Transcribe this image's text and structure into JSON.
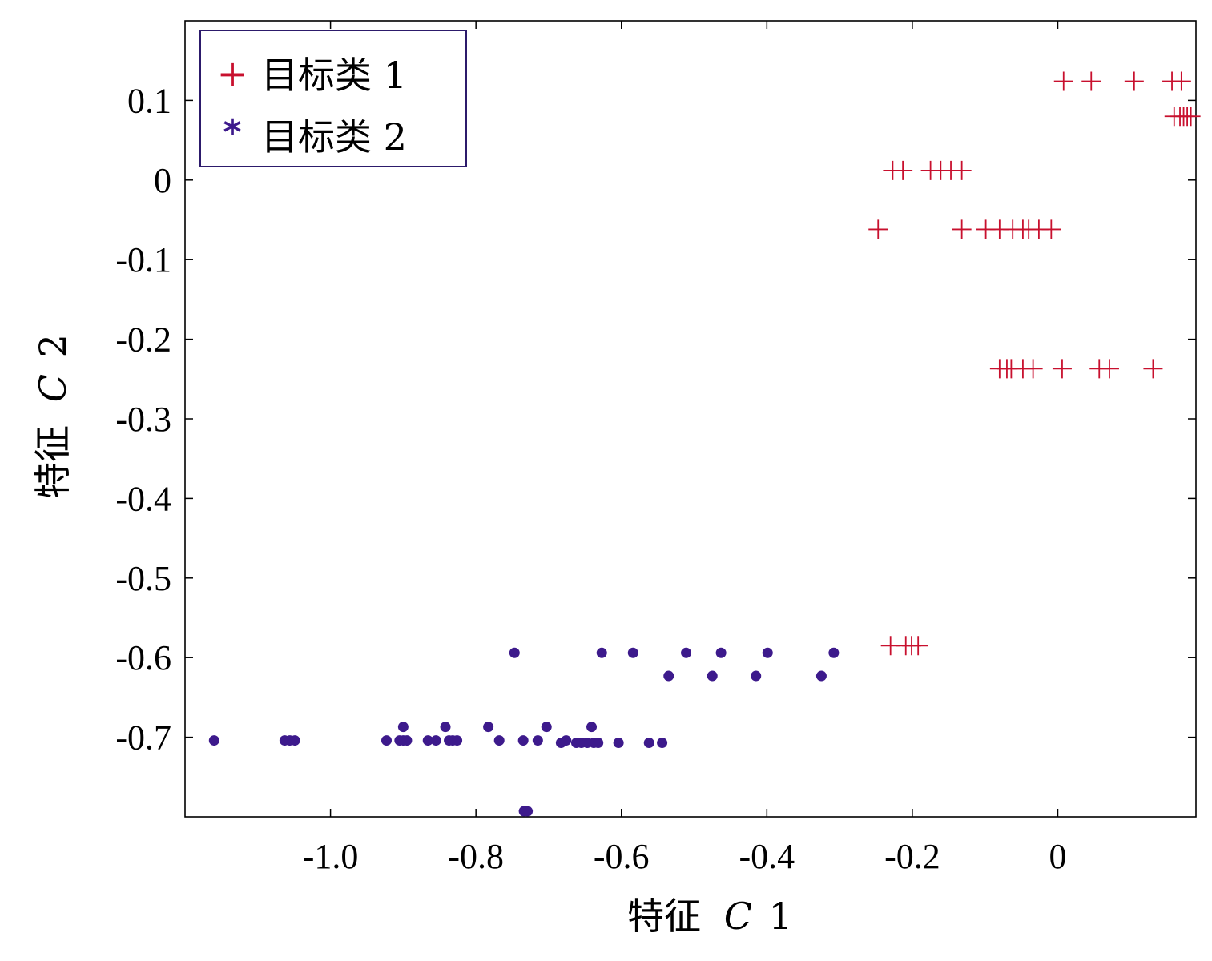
{
  "chart_data": {
    "type": "scatter",
    "xlabel_prefix": "特征",
    "xlabel_var": "C",
    "xlabel_index": "1",
    "ylabel_prefix": "特征",
    "ylabel_var": "C",
    "ylabel_index": "2",
    "xlim": [
      -1.2,
      0.19
    ],
    "ylim": [
      -0.8,
      0.2
    ],
    "x_ticks": [
      {
        "value": -1.0,
        "label": "-1.0"
      },
      {
        "value": -0.8,
        "label": "-0.8"
      },
      {
        "value": -0.6,
        "label": "-0.6"
      },
      {
        "value": -0.4,
        "label": "-0.4"
      },
      {
        "value": -0.2,
        "label": "-0.2"
      },
      {
        "value": 0.0,
        "label": "0"
      }
    ],
    "y_ticks": [
      {
        "value": 0.1,
        "label": "0.1"
      },
      {
        "value": 0.0,
        "label": "0"
      },
      {
        "value": -0.1,
        "label": "-0.1"
      },
      {
        "value": -0.2,
        "label": "-0.2"
      },
      {
        "value": -0.3,
        "label": "-0.3"
      },
      {
        "value": -0.4,
        "label": "-0.4"
      },
      {
        "value": -0.5,
        "label": "-0.5"
      },
      {
        "value": -0.6,
        "label": "-0.6"
      },
      {
        "value": -0.7,
        "label": "-0.7"
      }
    ],
    "grid": false,
    "legend_position": "top-left",
    "series": [
      {
        "name": "目标类 1",
        "marker": "plus",
        "legend_symbol": "+",
        "color": "#c8102e",
        "points": [
          [
            0.008,
            0.124
          ],
          [
            0.046,
            0.124
          ],
          [
            0.105,
            0.124
          ],
          [
            0.157,
            0.124
          ],
          [
            0.17,
            0.124
          ],
          [
            0.16,
            0.08
          ],
          [
            0.168,
            0.08
          ],
          [
            0.173,
            0.08
          ],
          [
            0.178,
            0.08
          ],
          [
            0.183,
            0.08
          ],
          [
            -0.227,
            0.012
          ],
          [
            -0.213,
            0.012
          ],
          [
            -0.175,
            0.012
          ],
          [
            -0.161,
            0.012
          ],
          [
            -0.147,
            0.012
          ],
          [
            -0.132,
            0.012
          ],
          [
            -0.247,
            -0.062
          ],
          [
            -0.132,
            -0.062
          ],
          [
            -0.099,
            -0.062
          ],
          [
            -0.08,
            -0.062
          ],
          [
            -0.062,
            -0.062
          ],
          [
            -0.048,
            -0.062
          ],
          [
            -0.04,
            -0.062
          ],
          [
            -0.026,
            -0.062
          ],
          [
            -0.009,
            -0.062
          ],
          [
            -0.08,
            -0.237
          ],
          [
            -0.07,
            -0.237
          ],
          [
            -0.064,
            -0.237
          ],
          [
            -0.048,
            -0.237
          ],
          [
            -0.034,
            -0.237
          ],
          [
            0.006,
            -0.237
          ],
          [
            0.057,
            -0.237
          ],
          [
            0.071,
            -0.237
          ],
          [
            0.131,
            -0.237
          ],
          [
            -0.23,
            -0.585
          ],
          [
            -0.209,
            -0.585
          ],
          [
            -0.201,
            -0.585
          ],
          [
            -0.192,
            -0.585
          ]
        ]
      },
      {
        "name": "目标类 2",
        "marker": "dot",
        "legend_symbol": "*",
        "color": "#3d1a8c",
        "points": [
          [
            -1.16,
            -0.704
          ],
          [
            -1.063,
            -0.704
          ],
          [
            -1.056,
            -0.704
          ],
          [
            -1.049,
            -0.704
          ],
          [
            -0.923,
            -0.704
          ],
          [
            -0.905,
            -0.704
          ],
          [
            -0.9,
            -0.704
          ],
          [
            -0.895,
            -0.704
          ],
          [
            -0.9,
            -0.687
          ],
          [
            -0.866,
            -0.704
          ],
          [
            -0.855,
            -0.704
          ],
          [
            -0.837,
            -0.704
          ],
          [
            -0.832,
            -0.704
          ],
          [
            -0.826,
            -0.704
          ],
          [
            -0.842,
            -0.687
          ],
          [
            -0.783,
            -0.687
          ],
          [
            -0.768,
            -0.704
          ],
          [
            -0.735,
            -0.704
          ],
          [
            -0.715,
            -0.704
          ],
          [
            -0.703,
            -0.687
          ],
          [
            -0.683,
            -0.707
          ],
          [
            -0.676,
            -0.704
          ],
          [
            -0.662,
            -0.707
          ],
          [
            -0.655,
            -0.707
          ],
          [
            -0.647,
            -0.707
          ],
          [
            -0.641,
            -0.687
          ],
          [
            -0.638,
            -0.707
          ],
          [
            -0.632,
            -0.707
          ],
          [
            -0.604,
            -0.707
          ],
          [
            -0.562,
            -0.707
          ],
          [
            -0.544,
            -0.707
          ],
          [
            -0.747,
            -0.594
          ],
          [
            -0.627,
            -0.594
          ],
          [
            -0.584,
            -0.594
          ],
          [
            -0.511,
            -0.594
          ],
          [
            -0.463,
            -0.594
          ],
          [
            -0.399,
            -0.594
          ],
          [
            -0.308,
            -0.594
          ],
          [
            -0.535,
            -0.623
          ],
          [
            -0.475,
            -0.623
          ],
          [
            -0.415,
            -0.623
          ],
          [
            -0.325,
            -0.623
          ],
          [
            -0.734,
            -0.793
          ],
          [
            -0.729,
            -0.793
          ]
        ]
      }
    ]
  }
}
